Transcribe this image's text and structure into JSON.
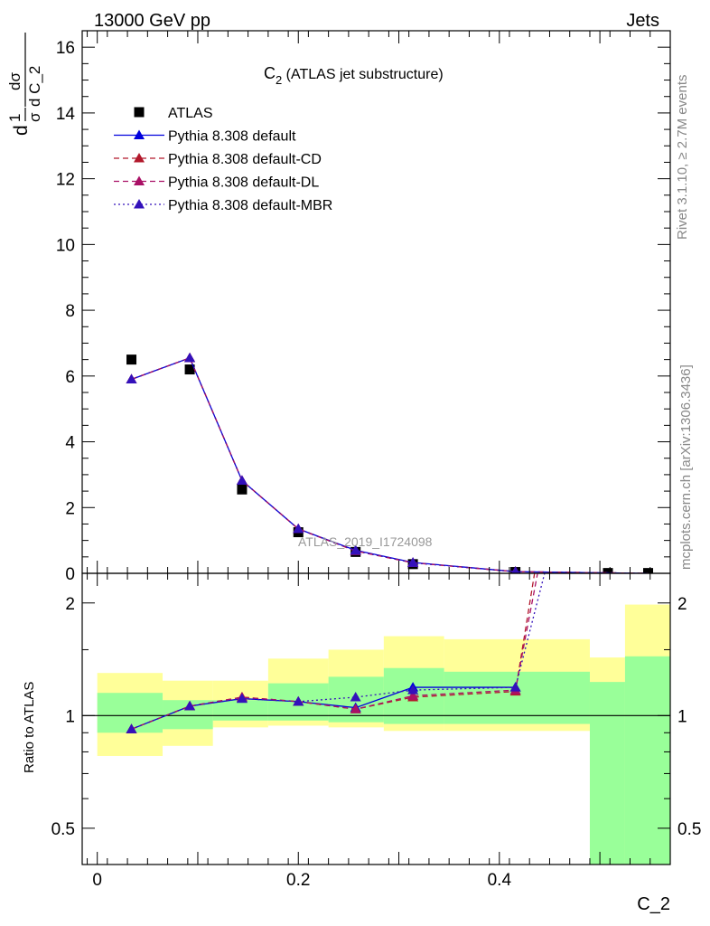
{
  "header": {
    "left": "13000 GeV pp",
    "right": "Jets"
  },
  "side_labels": {
    "rivet": "Rivet 3.1.10, ≥ 2.7M events",
    "mcplots": "mcplots.cern.ch [arXiv:1306.3436]"
  },
  "chart_data": [
    {
      "type": "line",
      "panel": "main",
      "title_main": "C",
      "title_sub": "2",
      "title_rest": " (ATLAS jet substructure)",
      "watermark": "ATLAS_2019_I1724098",
      "ylabel_parts": {
        "d1": "d",
        "sigma": "σ",
        "one": "1",
        "dsigma": "dσ",
        "dvar": "d C_2"
      },
      "xlim": [
        -0.015,
        0.57
      ],
      "ylim": [
        0,
        16.5
      ],
      "y_ticks": [
        0,
        2,
        4,
        6,
        8,
        10,
        12,
        14,
        16
      ],
      "y_tick_labels": [
        "0",
        "2",
        "4",
        "6",
        "8",
        "10",
        "12",
        "14",
        "16"
      ],
      "bins": [
        [
          0.0,
          0.065
        ],
        [
          0.065,
          0.115
        ],
        [
          0.115,
          0.17
        ],
        [
          0.17,
          0.23
        ],
        [
          0.23,
          0.285
        ],
        [
          0.285,
          0.345
        ],
        [
          0.345,
          0.49
        ],
        [
          0.49,
          0.525
        ],
        [
          0.525,
          0.57
        ]
      ],
      "series": [
        {
          "name": "ATLAS",
          "style": "marker",
          "color": "#000000",
          "x": [
            0.034,
            0.092,
            0.144,
            0.2,
            0.257,
            0.314,
            0.416,
            0.508,
            0.548
          ],
          "y": [
            6.5,
            6.2,
            2.55,
            1.25,
            0.65,
            0.28,
            0.04,
            0.01,
            0.01
          ]
        },
        {
          "name": "Pythia 8.308 default",
          "style": "solid",
          "color": "#0000dd",
          "x": [
            0.034,
            0.092,
            0.144,
            0.2,
            0.257,
            0.314,
            0.416,
            0.548
          ],
          "y": [
            5.9,
            6.55,
            2.82,
            1.35,
            0.7,
            0.33,
            0.05,
            0.0
          ]
        },
        {
          "name": "Pythia 8.308 default-CD",
          "style": "dashed",
          "color": "#b2182b",
          "x": [
            0.034,
            0.092,
            0.144,
            0.2,
            0.257,
            0.314,
            0.416,
            0.548
          ],
          "y": [
            5.9,
            6.55,
            2.82,
            1.35,
            0.68,
            0.32,
            0.05,
            0.0
          ]
        },
        {
          "name": "Pythia 8.308 default-DL",
          "style": "dashed",
          "color": "#aa1166",
          "x": [
            0.034,
            0.092,
            0.144,
            0.2,
            0.257,
            0.314,
            0.416,
            0.548
          ],
          "y": [
            5.9,
            6.55,
            2.82,
            1.35,
            0.68,
            0.32,
            0.05,
            0.0
          ]
        },
        {
          "name": "Pythia 8.308 default-MBR",
          "style": "dotted",
          "color": "#3311bb",
          "x": [
            0.034,
            0.092,
            0.144,
            0.2,
            0.257,
            0.314,
            0.416,
            0.548
          ],
          "y": [
            5.9,
            6.55,
            2.82,
            1.35,
            0.69,
            0.32,
            0.05,
            0.0
          ]
        }
      ]
    },
    {
      "type": "line",
      "panel": "ratio",
      "ylabel": "Ratio to ATLAS",
      "xlabel": "C_2",
      "scale": "log",
      "xlim": [
        -0.015,
        0.57
      ],
      "ylim": [
        0.4,
        2.4
      ],
      "x_ticks": [
        0,
        0.2,
        0.4
      ],
      "x_tick_labels": [
        "0",
        "0.2",
        "0.4"
      ],
      "y_ticks": [
        0.5,
        1,
        2
      ],
      "y_tick_labels": [
        "0.5",
        "1",
        "2"
      ],
      "bands": [
        {
          "bin": [
            0.0,
            0.065
          ],
          "yellow": [
            0.78,
            1.3
          ],
          "green": [
            0.9,
            1.15
          ]
        },
        {
          "bin": [
            0.065,
            0.115
          ],
          "yellow": [
            0.83,
            1.24
          ],
          "green": [
            0.92,
            1.1
          ]
        },
        {
          "bin": [
            0.115,
            0.17
          ],
          "yellow": [
            0.93,
            1.24
          ],
          "green": [
            0.97,
            1.1
          ]
        },
        {
          "bin": [
            0.17,
            0.23
          ],
          "yellow": [
            0.94,
            1.42
          ],
          "green": [
            0.97,
            1.22
          ]
        },
        {
          "bin": [
            0.23,
            0.285
          ],
          "yellow": [
            0.93,
            1.5
          ],
          "green": [
            0.96,
            1.27
          ]
        },
        {
          "bin": [
            0.285,
            0.345
          ],
          "yellow": [
            0.91,
            1.63
          ],
          "green": [
            0.95,
            1.34
          ]
        },
        {
          "bin": [
            0.345,
            0.49
          ],
          "yellow": [
            0.91,
            1.6
          ],
          "green": [
            0.95,
            1.31
          ]
        },
        {
          "bin": [
            0.49,
            0.525
          ],
          "yellow": [
            0.4,
            1.43
          ],
          "green": [
            0.4,
            1.23
          ]
        },
        {
          "bin": [
            0.525,
            0.57
          ],
          "yellow": [
            0.4,
            1.98
          ],
          "green": [
            0.4,
            1.44
          ]
        }
      ],
      "series": [
        {
          "name": "Pythia 8.308 default",
          "style": "solid",
          "color": "#0000dd",
          "x": [
            0.034,
            0.092,
            0.144,
            0.2,
            0.257,
            0.314,
            0.416
          ],
          "y": [
            0.92,
            1.06,
            1.11,
            1.09,
            1.05,
            1.19,
            1.19
          ]
        },
        {
          "name": "Pythia 8.308 default-CD",
          "style": "dashed",
          "color": "#b2182b",
          "x": [
            0.034,
            0.092,
            0.144,
            0.2,
            0.257,
            0.314,
            0.416,
            0.435
          ],
          "y": [
            0.92,
            1.06,
            1.12,
            1.09,
            1.04,
            1.12,
            1.16,
            2.4
          ]
        },
        {
          "name": "Pythia 8.308 default-DL",
          "style": "dashed",
          "color": "#aa1166",
          "x": [
            0.034,
            0.092,
            0.144,
            0.2,
            0.257,
            0.314,
            0.416,
            0.438
          ],
          "y": [
            0.92,
            1.06,
            1.12,
            1.09,
            1.04,
            1.13,
            1.17,
            2.4
          ]
        },
        {
          "name": "Pythia 8.308 default-MBR",
          "style": "dotted",
          "color": "#3311bb",
          "x": [
            0.034,
            0.092,
            0.144,
            0.2,
            0.257,
            0.314,
            0.416,
            0.445
          ],
          "y": [
            0.92,
            1.06,
            1.11,
            1.09,
            1.12,
            1.17,
            1.19,
            2.4
          ]
        }
      ]
    }
  ]
}
